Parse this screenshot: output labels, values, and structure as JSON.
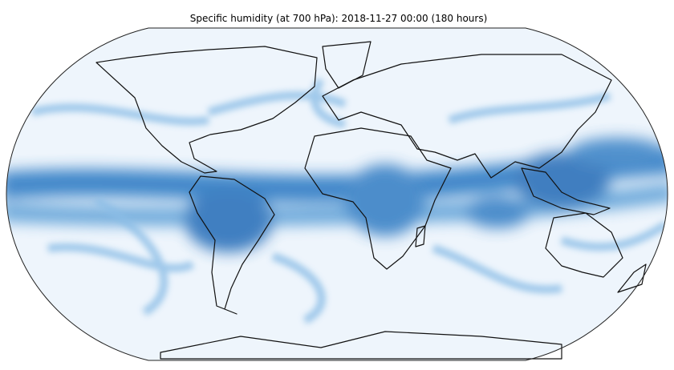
{
  "header": {
    "title": "Specific humidity (at 700 hPa): 2018-11-27 00:00 (180 hours)"
  }
}
